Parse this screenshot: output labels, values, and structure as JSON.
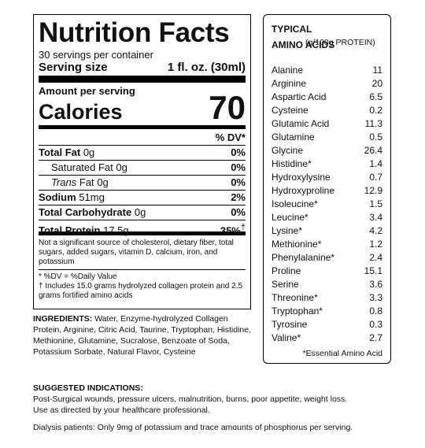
{
  "nutrition": {
    "title": "Nutrition Facts",
    "servings": "30 servings per container",
    "serving_size_label": "Serving size",
    "serving_size_value": "1 fl. oz. (30ml)",
    "amount_per_serving": "Amount per serving",
    "calories_label": "Calories",
    "calories_value": "70",
    "dv_header": "% DV*",
    "rows": [
      {
        "label": "Total Fat",
        "amount": "0g",
        "dv": "0%"
      },
      {
        "label": "Saturated Fat",
        "amount": "0g",
        "dv": "0%"
      },
      {
        "label_italic": "Trans",
        "label": "Fat",
        "amount": "0g",
        "dv": "0%"
      },
      {
        "label": "Sodium",
        "amount": "51mg",
        "dv": "2%"
      },
      {
        "label": "Total Carbohydrate",
        "amount": "0g",
        "dv": "0%"
      },
      {
        "label": "Total Protein",
        "amount": "17.5g",
        "dv": "35%",
        "dv_mark": "†"
      }
    ],
    "not_significant": "Not a significant source of cholesterol, dietary fiber, total sugars, added sugars, vitamin D, calcium, iron, and potassium",
    "dv_note": "* %DV = %Daily Value",
    "protein_note": "† Includes 15.0 grams hydrolyzed collagen protein and 2.5 grams fortified amino acids"
  },
  "ingredients": {
    "label": "INGREDIENTS:",
    "text": "Water, Enzyme-hydrolyzed Collagen Protein, Arginine, Citric Acid, Taurine, Tryptophan, Histidine, Methionine, Glutamine, Sucralose, Benzoate of Soda, Potassium Sorbate, Natural Flavor, Cysteine"
  },
  "amino": {
    "title": "TYPICAL AMINO ACIDS",
    "unit": "(g/100g PROTEIN)",
    "rows": [
      [
        "Alanine",
        "11"
      ],
      [
        "Arginine",
        "20"
      ],
      [
        "Aspartic Acid",
        "6.5"
      ],
      [
        "Cysteine",
        "0.2"
      ],
      [
        "Glutamic Acid",
        "11.3"
      ],
      [
        "Glutamine",
        "0.5"
      ],
      [
        "Glycine",
        "26.4"
      ],
      [
        "Histidine*",
        "1.4"
      ],
      [
        "Hydroxylysine",
        "0.7"
      ],
      [
        "Hydroxyproline",
        "12.9"
      ],
      [
        "Isoleucine*",
        "1.5"
      ],
      [
        "Leucine*",
        "3.4"
      ],
      [
        "Lysine*",
        "4.2"
      ],
      [
        "Methionine*",
        "1.2"
      ],
      [
        "Phenylalanine*",
        "2.4"
      ],
      [
        "Proline",
        "15.1"
      ],
      [
        "Serine",
        "3.6"
      ],
      [
        "Threonine*",
        "3.3"
      ],
      [
        "Tryptophan*",
        "0.8"
      ],
      [
        "Tyrosine",
        "0.3"
      ],
      [
        "Valine*",
        "2.7"
      ]
    ],
    "footnote": "*Essential Amino Acid"
  },
  "suggested": {
    "heading": "SUGGESTED INDICATIONS:",
    "line1": "Post-Surgical wounds, pressure ulcers, malnutrition, burns, poor appetite, weight loss.",
    "line2": "Use as directed by your healthcare professional.",
    "line3": "Dialysis patients: Only 9mg of potassium and trace amounts of phosphorus per serving."
  }
}
